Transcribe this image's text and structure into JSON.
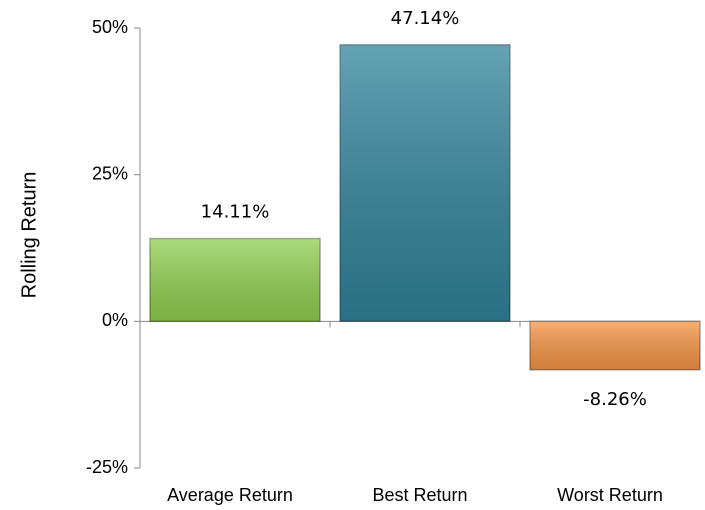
{
  "chart_data": {
    "type": "bar",
    "categories": [
      "Average Return",
      "Best Return",
      "Worst Return"
    ],
    "values": [
      14.11,
      47.14,
      -8.26
    ],
    "value_labels": [
      "14.11%",
      "47.14%",
      "-8.26%"
    ],
    "colors": [
      "#92d050",
      "#31849b",
      "#f79646"
    ],
    "y_label": "Rolling Return",
    "ylim": [
      -25,
      50
    ],
    "yticks": [
      {
        "value": -25,
        "label": "-25%"
      },
      {
        "value": 0,
        "label": "0%"
      },
      {
        "value": 25,
        "label": "25%"
      },
      {
        "value": 50,
        "label": "50%"
      }
    ],
    "grid": false
  }
}
